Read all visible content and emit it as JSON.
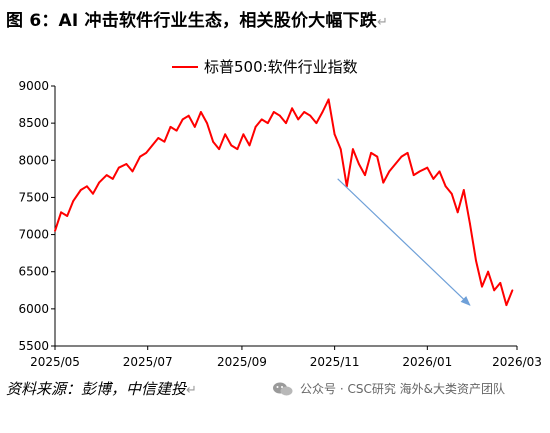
{
  "title": "图 6：AI 冲击软件行业生态，相关股价大幅下跌",
  "title_mark": "↵",
  "source": "资料来源：彭博，中信建投",
  "source_mark": "↵",
  "watermark": "公众号 · CSC研究 海外&大类资产团队",
  "colors": {
    "series": "#ff0000",
    "arrow": "#6fa0d8",
    "axis": "#000000"
  },
  "icons": {
    "watermark": "wechat-icon"
  },
  "chart_data": {
    "type": "line",
    "legend_placement": "top",
    "grid": false,
    "ylim": [
      5500,
      9000
    ],
    "yticks": [
      "9000",
      "8500",
      "8000",
      "7500",
      "7000",
      "6500",
      "6000",
      "5500"
    ],
    "xticks": [
      "2025/05",
      "2025/07",
      "2025/09",
      "2025/11",
      "2026/01",
      "2026/03"
    ],
    "series": [
      {
        "name": "标普500:软件行业指数",
        "x": [
          "2025-05-01",
          "2025-05-05",
          "2025-05-09",
          "2025-05-13",
          "2025-05-18",
          "2025-05-22",
          "2025-05-26",
          "2025-05-30",
          "2025-06-04",
          "2025-06-08",
          "2025-06-12",
          "2025-06-17",
          "2025-06-21",
          "2025-06-26",
          "2025-06-30",
          "2025-07-04",
          "2025-07-08",
          "2025-07-12",
          "2025-07-16",
          "2025-07-20",
          "2025-07-24",
          "2025-07-28",
          "2025-08-01",
          "2025-08-05",
          "2025-08-09",
          "2025-08-13",
          "2025-08-17",
          "2025-08-21",
          "2025-08-25",
          "2025-08-29",
          "2025-09-02",
          "2025-09-06",
          "2025-09-10",
          "2025-09-14",
          "2025-09-18",
          "2025-09-22",
          "2025-09-26",
          "2025-09-30",
          "2025-10-04",
          "2025-10-08",
          "2025-10-12",
          "2025-10-16",
          "2025-10-20",
          "2025-10-24",
          "2025-10-28",
          "2025-11-01",
          "2025-11-05",
          "2025-11-09",
          "2025-11-13",
          "2025-11-17",
          "2025-11-21",
          "2025-11-25",
          "2025-11-29",
          "2025-12-03",
          "2025-12-07",
          "2025-12-11",
          "2025-12-15",
          "2025-12-19",
          "2025-12-23",
          "2025-12-27",
          "2026-01-01",
          "2026-01-05",
          "2026-01-09",
          "2026-01-13",
          "2026-01-17",
          "2026-01-21",
          "2026-01-25",
          "2026-01-29",
          "2026-02-02",
          "2026-02-06",
          "2026-02-10",
          "2026-02-14",
          "2026-02-18",
          "2026-02-22",
          "2026-02-26"
        ],
        "values": [
          7050,
          7300,
          7250,
          7450,
          7600,
          7650,
          7550,
          7700,
          7800,
          7750,
          7900,
          7950,
          7850,
          8050,
          8100,
          8200,
          8300,
          8250,
          8450,
          8400,
          8550,
          8600,
          8450,
          8650,
          8500,
          8250,
          8150,
          8350,
          8200,
          8150,
          8350,
          8200,
          8450,
          8550,
          8500,
          8650,
          8600,
          8500,
          8700,
          8550,
          8650,
          8600,
          8500,
          8650,
          8820,
          8350,
          8150,
          7650,
          8150,
          7950,
          7800,
          8100,
          8050,
          7700,
          7850,
          7950,
          8050,
          8100,
          7800,
          7850,
          7900,
          7750,
          7850,
          7650,
          7550,
          7300,
          7600,
          7150,
          6650,
          6300,
          6500,
          6250,
          6350,
          6050,
          6250
        ]
      }
    ],
    "annotations": [
      {
        "type": "arrow",
        "direction": "down-right",
        "from": [
          "2025-11-03",
          7750
        ],
        "to": [
          "2026-01-29",
          6050
        ]
      }
    ]
  }
}
